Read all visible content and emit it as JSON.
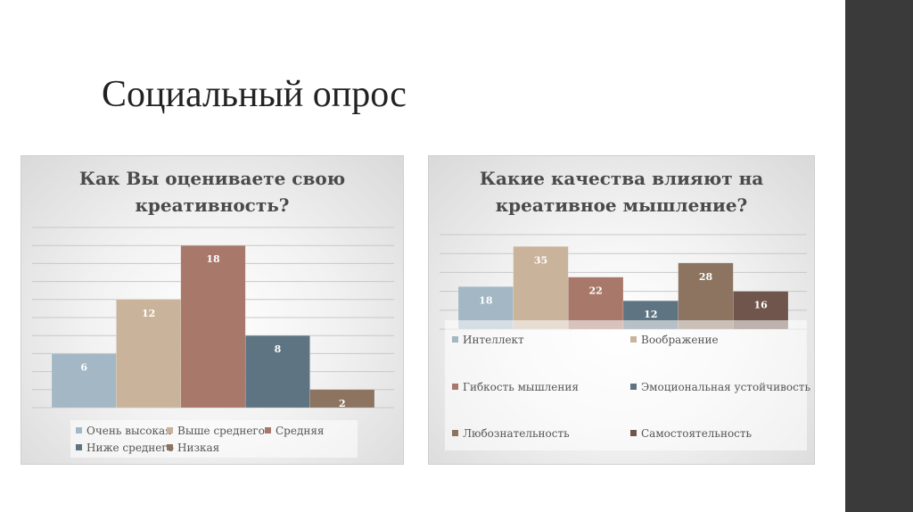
{
  "slide_title": "Социальный опрос",
  "colors": {
    "sidebar": "#3a3a3a",
    "series": [
      "#a3b7c4",
      "#c9b49b",
      "#a8786a",
      "#5e7482",
      "#8c7460",
      "#70554c"
    ]
  },
  "chart_data": [
    {
      "type": "bar",
      "title_lines": [
        "Как Вы оцениваете свою",
        "креативность?"
      ],
      "ylim": [
        0,
        20
      ],
      "grid": true,
      "legend_position": "bottom",
      "categories": [
        "Очень высокая",
        "Выше среднего",
        "Средняя",
        "Ниже среднего",
        "Низкая"
      ],
      "values": [
        6,
        12,
        18,
        8,
        2
      ],
      "data_labels": [
        "6",
        "12",
        "18",
        "8",
        "2"
      ],
      "legend": [
        "Очень высокая",
        "Выше среднего",
        "Средняя",
        "Ниже среднего",
        "Низкая"
      ]
    },
    {
      "type": "bar",
      "title_lines": [
        "Какие качества влияют на",
        "креативное мышление?"
      ],
      "ylim": [
        0,
        40
      ],
      "grid": true,
      "legend_position": "bottom",
      "categories": [
        "Интеллект",
        "Воображение",
        "Гибкость мышления",
        "Эмоциональная устойчивость",
        "Любознательность",
        "Самостоятельность"
      ],
      "values": [
        18,
        35,
        22,
        12,
        28,
        16
      ],
      "data_labels": [
        "18",
        "35",
        "22",
        "12",
        "28",
        "16"
      ],
      "legend": [
        "Интеллект",
        "Воображение",
        "Гибкость мышления",
        "Эмоциональная устойчивость",
        "Любознательность",
        "Самостоятельность"
      ]
    }
  ]
}
